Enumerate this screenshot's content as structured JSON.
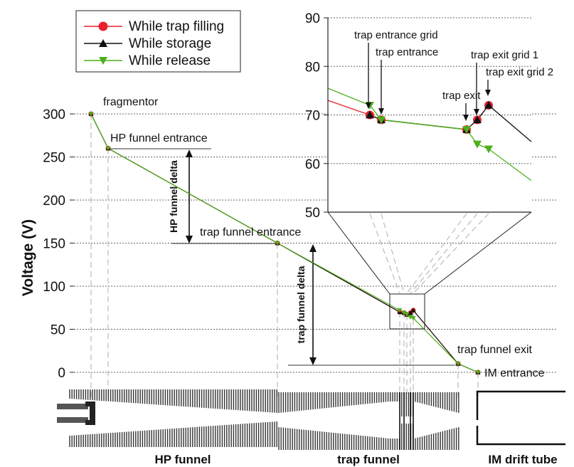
{
  "chart_data": {
    "type": "line",
    "ylabel": "Voltage (V)",
    "ylim": [
      0,
      300
    ],
    "yticks": [
      0,
      50,
      100,
      150,
      200,
      250,
      300
    ],
    "grid": true,
    "legend_position": "top-left",
    "series": [
      {
        "name": "While trap filling",
        "color": "#e8212b",
        "marker": "circle",
        "points": [
          [
            0,
            300
          ],
          [
            1,
            260
          ],
          [
            2,
            150
          ],
          [
            3,
            70
          ],
          [
            4,
            69
          ],
          [
            5,
            67
          ],
          [
            6,
            69
          ],
          [
            7,
            72
          ],
          [
            8,
            10
          ],
          [
            9,
            0
          ]
        ]
      },
      {
        "name": "While storage",
        "color": "#111111",
        "marker": "triangle-up",
        "points": [
          [
            0,
            300
          ],
          [
            1,
            260
          ],
          [
            2,
            150
          ],
          [
            3,
            70
          ],
          [
            4,
            69
          ],
          [
            5,
            67
          ],
          [
            6,
            69
          ],
          [
            7,
            72
          ],
          [
            8,
            10
          ],
          [
            9,
            0
          ]
        ]
      },
      {
        "name": "While release",
        "color": "#4caf1c",
        "marker": "triangle-down",
        "points": [
          [
            0,
            300
          ],
          [
            1,
            260
          ],
          [
            2,
            150
          ],
          [
            3,
            72
          ],
          [
            4,
            69
          ],
          [
            5,
            67
          ],
          [
            6,
            64
          ],
          [
            7,
            63
          ],
          [
            8,
            10
          ],
          [
            9,
            0
          ]
        ]
      }
    ],
    "point_labels": [
      "fragmentor",
      "HP funnel entrance",
      "trap funnel entrance",
      "trap entrance grid",
      "trap entrance",
      "trap exit",
      "trap exit grid 1",
      "trap exit grid 2",
      "trap funnel exit",
      "IM entrance"
    ],
    "inset": {
      "ylim": [
        50,
        90
      ],
      "yticks": [
        50,
        60,
        70,
        80,
        90
      ]
    },
    "delta_labels": [
      "HP funnel delta",
      "trap funnel delta"
    ],
    "section_labels": [
      "HP funnel",
      "trap funnel",
      "IM drift tube"
    ]
  }
}
